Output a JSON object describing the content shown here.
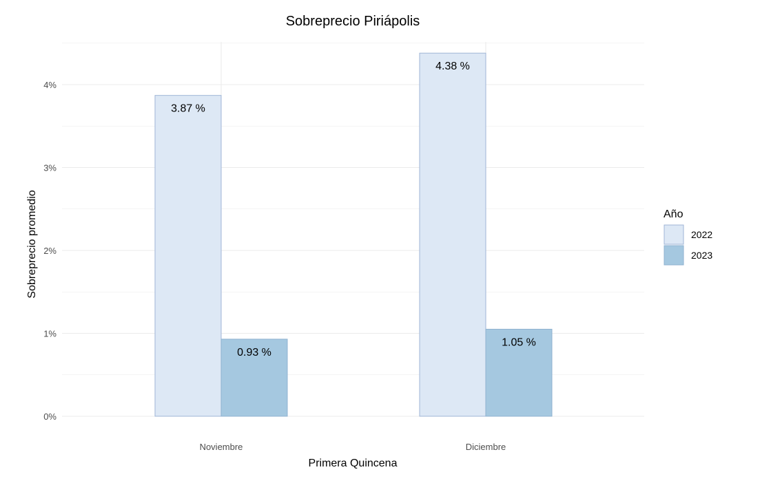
{
  "chart_data": {
    "type": "bar",
    "title": "Sobreprecio Piriápolis",
    "xlabel": "Primera Quincena",
    "ylabel": "Sobreprecio promedio",
    "categories": [
      "Noviembre",
      "Diciembre"
    ],
    "series": [
      {
        "name": "2022",
        "values": [
          3.87,
          4.38
        ],
        "labels": [
          "3.87 %",
          "4.38 %"
        ],
        "color": "#dde8f5",
        "stroke": "#9fb5d6"
      },
      {
        "name": "2023",
        "values": [
          0.93,
          1.05
        ],
        "labels": [
          "0.93 %",
          "1.05 %"
        ],
        "color": "#a5c8e0",
        "stroke": "#8fb2d0"
      }
    ],
    "ylim": [
      0,
      4.5
    ],
    "yticks": [
      0,
      1,
      2,
      3,
      4
    ],
    "ytick_labels": [
      "0%",
      "1%",
      "2%",
      "3%",
      "4%"
    ],
    "legend_title": "Año",
    "legend_position": "right",
    "grid": true,
    "grid_color": "#ebebeb"
  }
}
